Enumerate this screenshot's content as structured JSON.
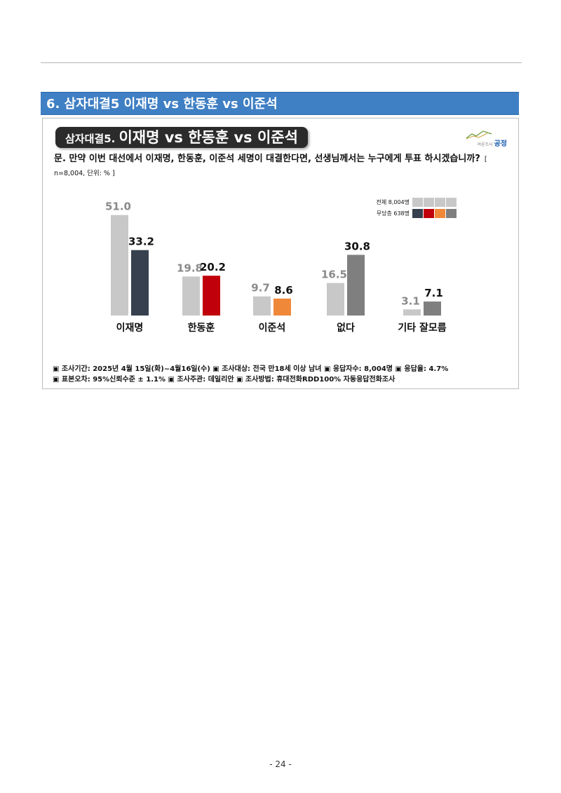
{
  "section": {
    "title": "6. 삼자대결5 이재명 vs 한동훈 vs 이준석"
  },
  "card": {
    "title_prefix": "삼자대결5.",
    "title_main": "이재명 vs 한동훈 vs 이준석",
    "logo_small": "여론조사",
    "logo_strong": "공정",
    "question": "문. 만약 이번 대선에서 이재명, 한동훈, 이준석 세명이 대결한다면, 선생님께서는 누구에게 투표 하시겠습니까?",
    "meta": "[ n=8,004, 단위: % ]"
  },
  "legend": [
    {
      "label": "전체 8,004명"
    },
    {
      "label": "무당층 638명"
    }
  ],
  "chart_data": {
    "type": "bar",
    "categories": [
      "이재명",
      "한동훈",
      "이준석",
      "없다",
      "기타 잘모름"
    ],
    "series": [
      {
        "name": "전체 8,004명",
        "values": [
          51.0,
          19.8,
          9.7,
          16.5,
          3.1
        ],
        "colors": [
          "#c8c8c8",
          "#c8c8c8",
          "#c8c8c8",
          "#c8c8c8",
          "#c8c8c8"
        ]
      },
      {
        "name": "무당층 638명",
        "values": [
          33.2,
          20.2,
          8.6,
          30.8,
          7.1
        ],
        "colors": [
          "#36404e",
          "#c0000a",
          "#f0883a",
          "#7f7f7f",
          "#7f7f7f"
        ]
      }
    ],
    "value_labels": [
      [
        "51.0",
        "19.8",
        "9.7",
        "16.5",
        "3.1"
      ],
      [
        "33.2",
        "20.2",
        "8.6",
        "30.8",
        "7.1"
      ]
    ],
    "label_colors": [
      "#8a8a8a",
      "#111111"
    ],
    "title": "",
    "xlabel": "",
    "ylabel": ""
  },
  "footnotes": {
    "line1": "▣ 조사기간: 2025년 4월 15일(화)~4월16일(수)  ▣ 조사대상: 전국 만18세 이상 남녀  ▣ 응답자수: 8,004명  ▣ 응답율: 4.7%",
    "line2": "▣ 표본오차: 95%신뢰수준 ± 1.1%     ▣ 조사주관: 데일리안      ▣ 조사방법: 휴대전화RDD100% 자동응답전화조사"
  },
  "page_number": "- 24 -"
}
